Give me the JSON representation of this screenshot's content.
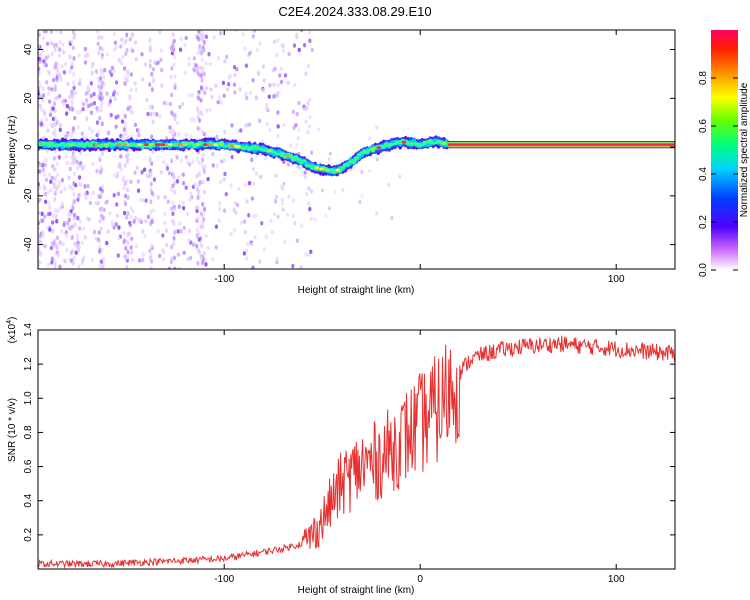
{
  "title": "C2E4.2024.333.08.29.E10",
  "chart_data": [
    {
      "type": "heatmap",
      "xlabel": "Height of straight line (km)",
      "ylabel": "Frequency (Hz)",
      "xlim": [
        -195,
        130
      ],
      "ylim": [
        -50,
        48
      ],
      "x_ticks": [
        -100,
        0,
        100
      ],
      "x_tick_labels": [
        "-100",
        "",
        "100"
      ],
      "y_ticks": [
        -40,
        -20,
        0,
        20,
        40
      ],
      "y_tick_labels": [
        "-40",
        "-20",
        "0",
        "20",
        "40"
      ],
      "grid": false,
      "frequency_ridge": {
        "x": [
          -195,
          -180,
          -160,
          -140,
          -120,
          -100,
          -90,
          -80,
          -70,
          -60,
          -55,
          -50,
          -45,
          -40,
          -35,
          -30,
          -25,
          -20,
          -15,
          -10,
          -5,
          0,
          5,
          10,
          14
        ],
        "y": [
          1,
          1,
          1,
          1,
          1,
          1,
          0,
          -1,
          -3,
          -6,
          -8,
          -9,
          -10,
          -9,
          -6,
          -3,
          -1,
          0,
          1,
          2,
          2,
          1,
          2,
          2,
          1
        ]
      },
      "constant_band": {
        "x_start": 14,
        "x_end": 130,
        "frequency": 1
      },
      "colorbar": {
        "label": "Normalized spectral amplitude",
        "range": [
          0,
          1
        ],
        "ticks": [
          0.0,
          0.2,
          0.4,
          0.6,
          0.8
        ],
        "tick_labels": [
          "0.0",
          "0.2",
          "0.4",
          "0.6",
          "0.8"
        ]
      }
    },
    {
      "type": "line",
      "xlabel": "Height of straight line (km)",
      "ylabel": "SNR (10 * v/v)",
      "scale_label": "(x10",
      "scale_exponent": "4",
      "scale_suffix": ")",
      "xlim": [
        -195,
        130
      ],
      "ylim": [
        0,
        1.4
      ],
      "x_ticks": [
        -100,
        0,
        100
      ],
      "x_tick_labels": [
        "-100",
        "0",
        "100"
      ],
      "y_ticks": [
        0.2,
        0.4,
        0.6,
        0.8,
        1.0,
        1.2,
        1.4
      ],
      "y_tick_labels": [
        "0.2",
        "0.4",
        "0.6",
        "0.8",
        "1.0",
        "1.2",
        "1.4"
      ],
      "grid": false,
      "series": [
        {
          "color": "#e83030",
          "x": [
            -195,
            -180,
            -160,
            -140,
            -120,
            -100,
            -90,
            -80,
            -70,
            -60,
            -55,
            -50,
            -45,
            -40,
            -35,
            -30,
            -25,
            -20,
            -15,
            -10,
            -5,
            0,
            5,
            10,
            15,
            20,
            25,
            30,
            40,
            50,
            60,
            70,
            80,
            90,
            100,
            110,
            120,
            130
          ],
          "y": [
            0.03,
            0.03,
            0.03,
            0.04,
            0.05,
            0.06,
            0.08,
            0.1,
            0.12,
            0.15,
            0.2,
            0.28,
            0.4,
            0.5,
            0.55,
            0.6,
            0.62,
            0.65,
            0.7,
            0.75,
            0.8,
            0.85,
            0.9,
            0.95,
            1.05,
            1.15,
            1.22,
            1.25,
            1.28,
            1.3,
            1.31,
            1.32,
            1.31,
            1.3,
            1.29,
            1.28,
            1.27,
            1.26
          ]
        }
      ]
    }
  ]
}
